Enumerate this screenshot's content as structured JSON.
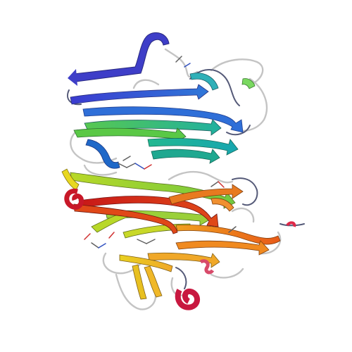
{
  "image": {
    "background": "#ffffff",
    "subject": "protein-ribbon-cartoon",
    "palette": {
      "blue_dark": "#3f3fc8",
      "blue": "#2f6fd8",
      "cyan": "#1fa8b8",
      "teal": "#1fb890",
      "green": "#55c850",
      "lime": "#a8d830",
      "yellow": "#e8d820",
      "orange": "#f09020",
      "orange_red": "#e85a18",
      "red": "#d82818",
      "crimson": "#c81840",
      "coil_gray": "#c8c8c8",
      "outline": "#3a3a3a"
    }
  }
}
